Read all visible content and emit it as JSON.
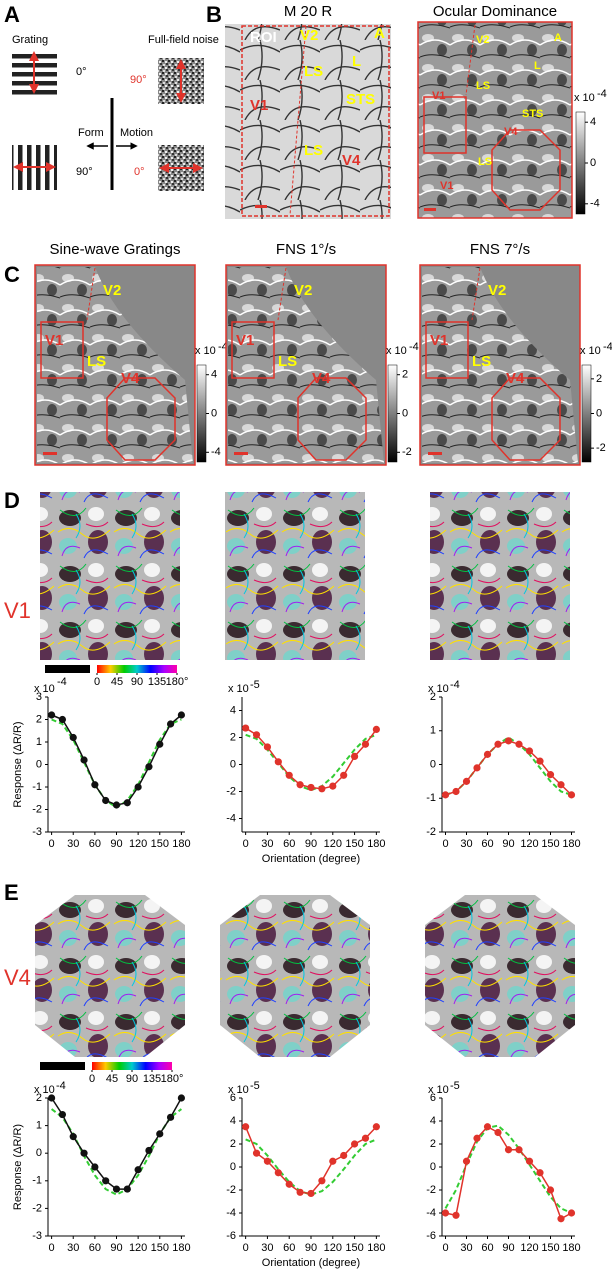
{
  "panel_a": {
    "label": "A",
    "grating_title": "Grating",
    "noise_title": "Full-field noise",
    "grating_angles": [
      "0°",
      "90°"
    ],
    "noise_angles": [
      "90°",
      "0°"
    ],
    "form": "Form",
    "motion": "Motion"
  },
  "panel_b": {
    "label": "B",
    "left_title": "M 20 R",
    "right_title": "Ocular Dominance",
    "left_areas": [
      "ROI",
      "V2",
      "A",
      "L",
      "LS",
      "STS",
      "V1",
      "LS",
      "V4"
    ],
    "right_areas": [
      "V2",
      "A",
      "L",
      "LS",
      "STS",
      "V1",
      "V4",
      "LS",
      "V1"
    ],
    "colorbar": {
      "unit": "x 10",
      "exp": "-4",
      "lim": [
        -5,
        5
      ],
      "ticks": [
        4,
        0,
        -4
      ]
    }
  },
  "panel_c": {
    "label": "C",
    "titles": [
      "Sine-wave Gratings",
      "FNS 1°/s",
      "FNS 7°/s"
    ],
    "areas": [
      "V2",
      "V1",
      "LS",
      "V4"
    ],
    "colorbars": [
      {
        "unit": "x 10",
        "exp": "-4",
        "lim": [
          -5,
          5
        ],
        "ticks": [
          4,
          0,
          -4
        ]
      },
      {
        "unit": "x 10",
        "exp": "-4",
        "lim": [
          -2.5,
          2.5
        ],
        "ticks": [
          2,
          0,
          -2
        ]
      },
      {
        "unit": "x 10",
        "exp": "-4",
        "lim": [
          -2.8,
          2.8
        ],
        "ticks": [
          2,
          0,
          -2
        ]
      }
    ]
  },
  "panel_d": {
    "label": "D",
    "row_label": "V1",
    "amp_label": -4,
    "orientation_ticks": [
      0,
      45,
      90,
      135,
      {
        "value": 180,
        "label": "180°"
      }
    ],
    "charts": [
      {
        "type": "line",
        "y_label": "Response (ΔR/R)",
        "y_scale": "x 10",
        "x": [
          0,
          15,
          30,
          45,
          60,
          75,
          90,
          105,
          120,
          135,
          150,
          165,
          180
        ],
        "xlim": [
          -5,
          185
        ],
        "xticks": [
          0,
          30,
          60,
          90,
          120,
          150,
          180
        ],
        "ylim": [
          -3,
          3
        ],
        "yticks": [
          -3,
          -2,
          -1,
          0,
          1,
          2,
          3
        ],
        "series": [
          {
            "color": "#111111",
            "markers": true,
            "values": [
              2.2,
              2.0,
              1.2,
              0.2,
              -0.9,
              -1.6,
              -1.8,
              -1.7,
              -1.0,
              -0.1,
              0.9,
              1.8,
              2.2
            ]
          },
          {
            "color": "#33cc33",
            "style": "dashed",
            "values": [
              2.0,
              1.8,
              1.1,
              0.1,
              -0.9,
              -1.6,
              -1.9,
              -1.6,
              -0.9,
              0.1,
              1.1,
              1.8,
              2.0
            ]
          }
        ]
      },
      {
        "type": "line",
        "x_label": "Orientation (degree)",
        "y_scale": "x 10",
        "y_exp": "-5",
        "x": [
          0,
          15,
          30,
          45,
          60,
          75,
          90,
          105,
          120,
          135,
          150,
          165,
          180
        ],
        "xlim": [
          -5,
          185
        ],
        "xticks": [
          0,
          30,
          60,
          90,
          120,
          150,
          180
        ],
        "ylim": [
          -5,
          5
        ],
        "yticks": [
          -4,
          -2,
          0,
          2,
          4
        ],
        "series": [
          {
            "color": "#e0332b",
            "markers": true,
            "values": [
              2.7,
              2.2,
              1.3,
              0.2,
              -0.8,
              -1.5,
              -1.7,
              -1.8,
              -1.6,
              -0.8,
              0.6,
              1.5,
              2.6
            ]
          },
          {
            "color": "#33cc33",
            "style": "dashed",
            "values": [
              2.2,
              1.9,
              1.1,
              0.1,
              -0.9,
              -1.6,
              -1.9,
              -1.6,
              -0.9,
              0.1,
              1.1,
              1.9,
              2.2
            ]
          }
        ]
      },
      {
        "type": "line",
        "y_scale": "x 10",
        "y_exp": "-4",
        "x": [
          0,
          15,
          30,
          45,
          60,
          75,
          90,
          105,
          120,
          135,
          150,
          165,
          180
        ],
        "xlim": [
          -5,
          185
        ],
        "xticks": [
          0,
          30,
          60,
          90,
          120,
          150,
          180
        ],
        "ylim": [
          -2,
          2
        ],
        "yticks": [
          -2,
          -1,
          0,
          1,
          2
        ],
        "series": [
          {
            "color": "#e0332b",
            "markers": true,
            "values": [
              -0.9,
              -0.8,
              -0.5,
              -0.1,
              0.3,
              0.6,
              0.7,
              0.6,
              0.4,
              0.1,
              -0.3,
              -0.6,
              -0.9
            ]
          },
          {
            "color": "#33cc33",
            "style": "dashed",
            "values": [
              -0.9,
              -0.8,
              -0.5,
              -0.1,
              0.3,
              0.6,
              0.8,
              0.6,
              0.3,
              -0.1,
              -0.5,
              -0.8,
              -0.9
            ]
          }
        ]
      }
    ]
  },
  "panel_e": {
    "label": "E",
    "row_label": "V4",
    "orientation_ticks": [
      0,
      45,
      90,
      135,
      {
        "value": 180,
        "label": "180°"
      }
    ],
    "charts": [
      {
        "type": "line",
        "y_label": "Response (ΔR/R)",
        "y_scale": "x 10",
        "y_exp": "-4",
        "x": [
          0,
          15,
          30,
          45,
          60,
          75,
          90,
          105,
          120,
          135,
          150,
          165,
          180
        ],
        "xlim": [
          -5,
          185
        ],
        "xticks": [
          0,
          30,
          60,
          90,
          120,
          150,
          180
        ],
        "ylim": [
          -3,
          2
        ],
        "yticks": [
          -3,
          -2,
          -1,
          0,
          1,
          2
        ],
        "series": [
          {
            "color": "#111111",
            "markers": true,
            "values": [
              2.0,
              1.4,
              0.6,
              0.0,
              -0.5,
              -1.0,
              -1.3,
              -1.3,
              -0.6,
              0.1,
              0.7,
              1.3,
              2.0
            ]
          },
          {
            "color": "#33cc33",
            "style": "dashed",
            "values": [
              1.6,
              1.3,
              0.7,
              -0.1,
              -0.8,
              -1.3,
              -1.5,
              -1.3,
              -0.8,
              -0.1,
              0.7,
              1.3,
              1.6
            ]
          }
        ]
      },
      {
        "type": "line",
        "x_label": "Orientation (degree)",
        "y_scale": "x 10",
        "y_exp": "-5",
        "x": [
          0,
          15,
          30,
          45,
          60,
          75,
          90,
          105,
          120,
          135,
          150,
          165,
          180
        ],
        "xlim": [
          -5,
          185
        ],
        "xticks": [
          0,
          30,
          60,
          90,
          120,
          150,
          180
        ],
        "ylim": [
          -6,
          6
        ],
        "yticks": [
          -6,
          -4,
          -2,
          0,
          2,
          4,
          6
        ],
        "series": [
          {
            "color": "#e0332b",
            "markers": true,
            "values": [
              3.5,
              1.2,
              0.5,
              -0.5,
              -1.5,
              -2.2,
              -2.3,
              -1.2,
              0.5,
              1.0,
              2.0,
              2.5,
              3.5
            ]
          },
          {
            "color": "#33cc33",
            "style": "dashed",
            "values": [
              2.4,
              2.0,
              1.0,
              -0.2,
              -1.3,
              -2.1,
              -2.4,
              -2.1,
              -1.3,
              -0.2,
              1.0,
              2.0,
              2.4
            ]
          }
        ]
      },
      {
        "type": "line",
        "y_scale": "x 10",
        "y_exp": "-5",
        "x": [
          0,
          15,
          30,
          45,
          60,
          75,
          90,
          105,
          120,
          135,
          150,
          165,
          180
        ],
        "xlim": [
          -5,
          185
        ],
        "xticks": [
          0,
          30,
          60,
          90,
          120,
          150,
          180
        ],
        "ylim": [
          -6,
          6
        ],
        "yticks": [
          -6,
          -4,
          -2,
          0,
          2,
          4,
          6
        ],
        "series": [
          {
            "color": "#e0332b",
            "markers": true,
            "values": [
              -4.0,
              -4.2,
              0.5,
              2.5,
              3.5,
              3.0,
              1.5,
              1.5,
              0.5,
              -0.5,
              -2.0,
              -4.5,
              -4.0
            ]
          },
          {
            "color": "#33cc33",
            "style": "dashed",
            "values": [
              -3.6,
              -2.0,
              0.2,
              2.2,
              3.4,
              3.6,
              2.8,
              1.6,
              0.2,
              -1.2,
              -2.6,
              -3.6,
              -4.0
            ]
          }
        ]
      }
    ]
  }
}
